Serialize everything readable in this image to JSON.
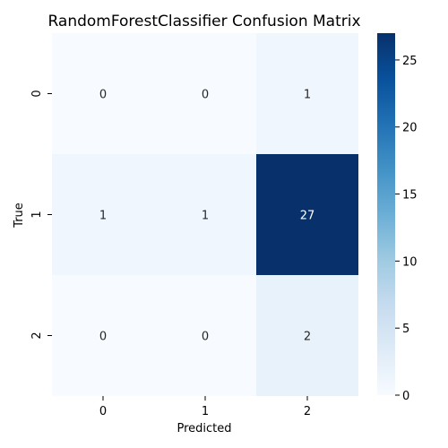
{
  "chart_data": {
    "type": "heatmap",
    "title": "RandomForestClassifier Confusion Matrix",
    "xlabel": "Predicted",
    "ylabel": "True",
    "x_categories": [
      "0",
      "1",
      "2"
    ],
    "y_categories": [
      "0",
      "1",
      "2"
    ],
    "values": [
      [
        0,
        0,
        1
      ],
      [
        1,
        1,
        27
      ],
      [
        0,
        0,
        2
      ]
    ],
    "colorbar": {
      "min": 0,
      "max": 27,
      "ticks": [
        "0",
        "5",
        "10",
        "15",
        "20",
        "25"
      ]
    },
    "colormap": "Blues",
    "colors": {
      "low": "#f7fbff",
      "high": "#08306b",
      "text_dark": "#262626",
      "text_light": "#ffffff"
    },
    "grid": false
  }
}
